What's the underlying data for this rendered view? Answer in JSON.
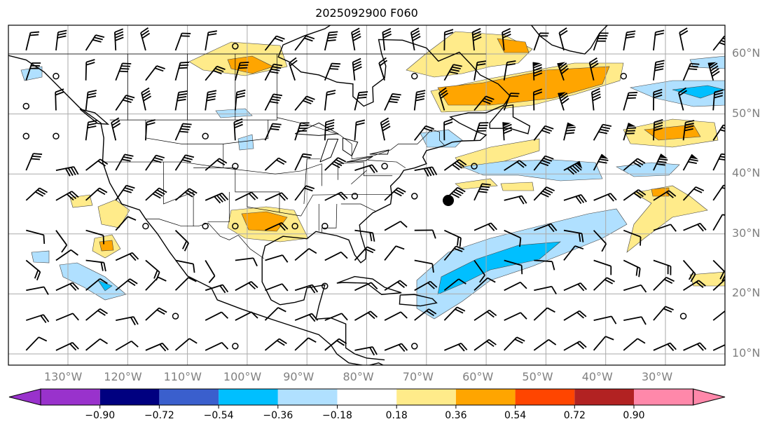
{
  "title": "2025092900 F060",
  "map": {
    "lon_labels": [
      "130°W",
      "120°W",
      "110°W",
      "100°W",
      "90°W",
      "80°W",
      "70°W",
      "60°W",
      "50°W",
      "40°W",
      "30°W"
    ],
    "lat_labels": [
      "60°N",
      "50°N",
      "40°N",
      "30°N",
      "20°N",
      "10°N"
    ],
    "extent": {
      "lon": [
        -140,
        -20
      ],
      "lat": [
        8,
        65
      ]
    }
  },
  "colorbar": {
    "ticks": [
      "−0.90",
      "−0.72",
      "−0.54",
      "−0.36",
      "−0.18",
      "0.18",
      "0.36",
      "0.54",
      "0.72",
      "0.90"
    ],
    "colors": [
      "#9932cc",
      "#000080",
      "#3a5fcd",
      "#00bfff",
      "#b0e0ff",
      "#ffffff",
      "#ffeb8a",
      "#ffa500",
      "#ff4500",
      "#b22222",
      "#ff88aa"
    ]
  }
}
